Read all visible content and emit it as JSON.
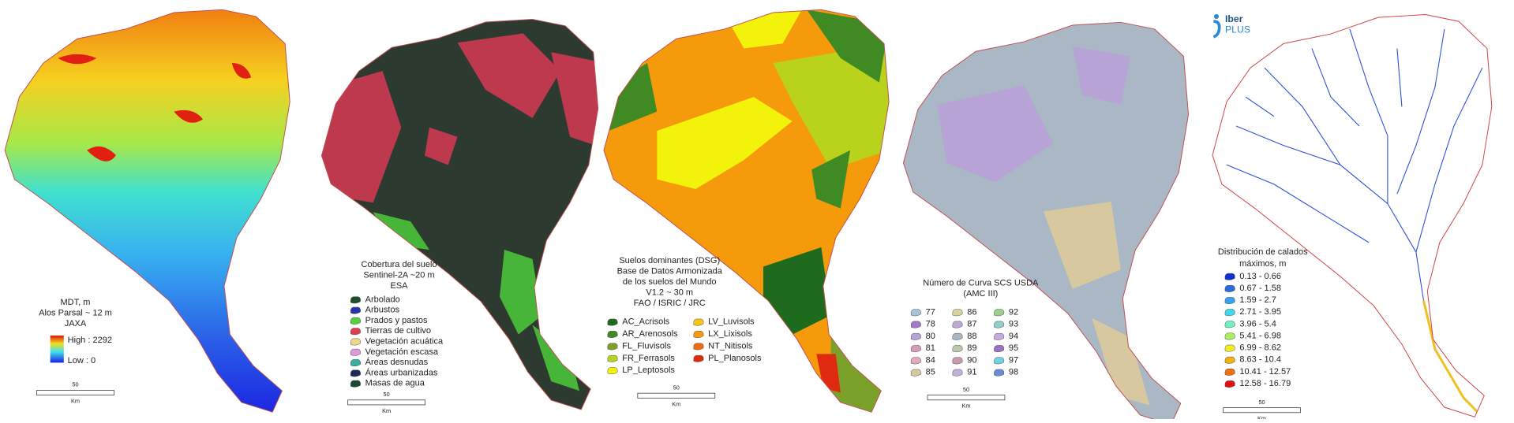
{
  "panels": [
    {
      "title_lines": [
        "MDT,  m",
        "Alos Parsal  ~ 12 m",
        "JAXA"
      ],
      "ramp": {
        "high": "High : 2292",
        "low": "Low :  0"
      },
      "scale": {
        "value": "50",
        "unit": "Km"
      }
    },
    {
      "title_lines": [
        "Cobertura del suelo",
        "Sentinel-2A ~20 m",
        "ESA"
      ],
      "items": [
        {
          "label": "Arbolado",
          "color": "#1f4f2a"
        },
        {
          "label": "Arbustos",
          "color": "#2636a8"
        },
        {
          "label": "Prados y pastos",
          "color": "#4fd43a"
        },
        {
          "label": "Tierras de cultivo",
          "color": "#e23a50"
        },
        {
          "label": "Vegetación acuática",
          "color": "#f0d78a"
        },
        {
          "label": "Vegetación escasa",
          "color": "#e09ad8"
        },
        {
          "label": "Áreas desnudas",
          "color": "#3aaea0"
        },
        {
          "label": "Áreas urbanizadas",
          "color": "#1c2a5a"
        },
        {
          "label": "Masas de agua",
          "color": "#1b4a30"
        }
      ],
      "scale": {
        "value": "50",
        "unit": "Km"
      }
    },
    {
      "title_lines": [
        "Suelos dominantes (DSG)",
        "Base de Datos Armonizada",
        "de los suelos del Mundo",
        "V1.2 ~ 30 m",
        "FAO / ISRIC / JRC"
      ],
      "items": [
        {
          "label": "AC_Acrisols",
          "color": "#1e6b1e"
        },
        {
          "label": "AR_Arenosols",
          "color": "#3f8a22"
        },
        {
          "label": "FL_Fluvisols",
          "color": "#7aa22a"
        },
        {
          "label": "FR_Ferrasols",
          "color": "#b9d21c"
        },
        {
          "label": "LP_Leptosols",
          "color": "#f2f20a"
        },
        {
          "label": "LV_Luvisols",
          "color": "#f5c518"
        },
        {
          "label": "LX_Lixisols",
          "color": "#f59a0a"
        },
        {
          "label": "NT_Nitisols",
          "color": "#f06a10"
        },
        {
          "label": "PL_Planosols",
          "color": "#e02a10"
        }
      ],
      "scale": {
        "value": "50",
        "unit": "Km"
      }
    },
    {
      "title_lines": [
        "Número de Curva SCS USDA",
        "(AMC III)"
      ],
      "items": [
        {
          "label": "77",
          "color": "#a8c4d8"
        },
        {
          "label": "78",
          "color": "#a07ac8"
        },
        {
          "label": "80",
          "color": "#b7a3d6"
        },
        {
          "label": "81",
          "color": "#d89ab8"
        },
        {
          "label": "84",
          "color": "#e2a8c0"
        },
        {
          "label": "85",
          "color": "#d8c8a0"
        },
        {
          "label": "86",
          "color": "#d6d49a"
        },
        {
          "label": "87",
          "color": "#bba8d8"
        },
        {
          "label": "88",
          "color": "#a9b6c4"
        },
        {
          "label": "89",
          "color": "#b9c8a8"
        },
        {
          "label": "90",
          "color": "#c89ab0"
        },
        {
          "label": "91",
          "color": "#c0b0dc"
        },
        {
          "label": "92",
          "color": "#9ad08a"
        },
        {
          "label": "93",
          "color": "#8ed0c8"
        },
        {
          "label": "94",
          "color": "#c8a8e0"
        },
        {
          "label": "95",
          "color": "#9a70c0"
        },
        {
          "label": "97",
          "color": "#70d4e0"
        },
        {
          "label": "98",
          "color": "#6a8ad8"
        }
      ],
      "scale": {
        "value": "50",
        "unit": "Km"
      }
    },
    {
      "logo": {
        "top": "Iber",
        "bottom": "PLUS"
      },
      "title_lines": [
        "Distribución de calados",
        "máximos, m"
      ],
      "items": [
        {
          "label": "0.13 - 0.66",
          "color": "#1030d0"
        },
        {
          "label": "0.67 - 1.58",
          "color": "#2a6ae0"
        },
        {
          "label": "1.59 - 2.7",
          "color": "#3aa0f0"
        },
        {
          "label": "2.71 - 3.95",
          "color": "#40d8f0"
        },
        {
          "label": "3.96 - 5.4",
          "color": "#70f0c0"
        },
        {
          "label": "5.41 - 6.98",
          "color": "#a8f060"
        },
        {
          "label": "6.99 - 8.62",
          "color": "#f0f020"
        },
        {
          "label": "8.63 - 10.4",
          "color": "#f0b010"
        },
        {
          "label": "10.41 - 12.57",
          "color": "#f07010"
        },
        {
          "label": "12.58 - 16.79",
          "color": "#e01010"
        }
      ],
      "scale": {
        "value": "50",
        "unit": "Km"
      }
    }
  ]
}
